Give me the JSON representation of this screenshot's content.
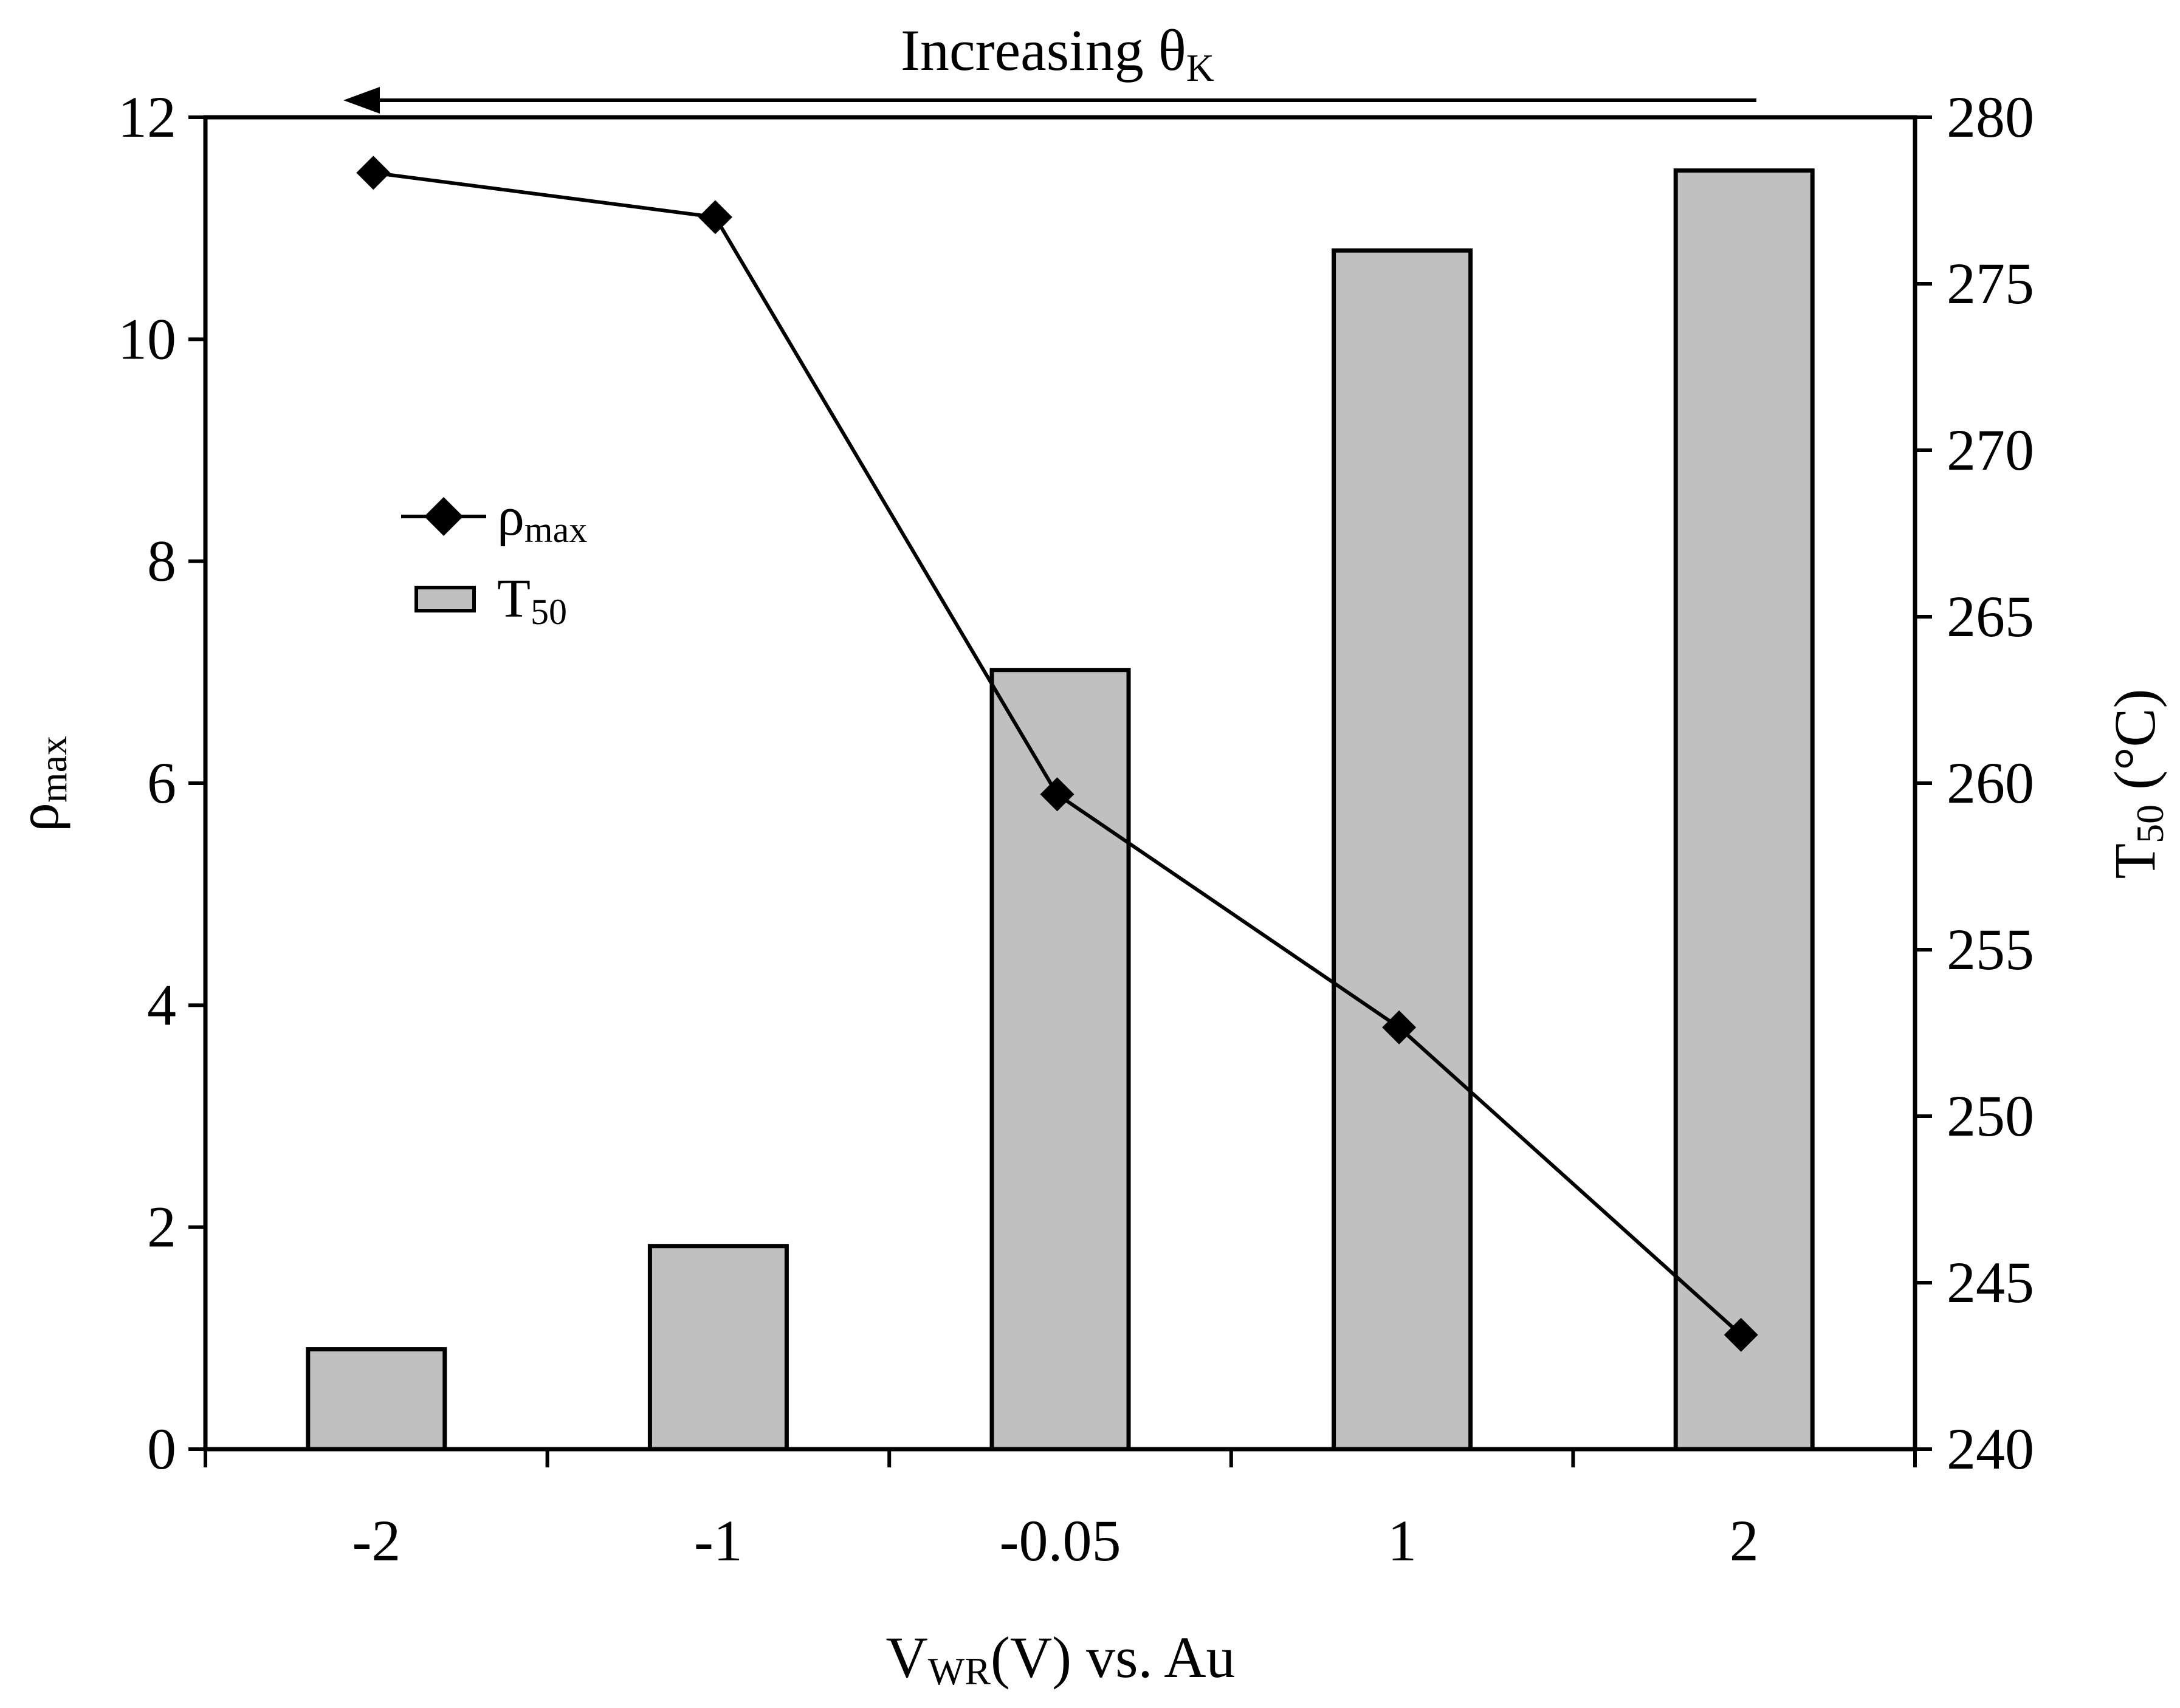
{
  "chart_data": {
    "type": "bar+line",
    "annotation": {
      "text": "Increasing θ",
      "subscript": "K",
      "direction": "right-to-left arrow"
    },
    "categories": [
      "-2",
      "-1",
      "-0.05",
      "1",
      "2"
    ],
    "xlabel": {
      "main": "V",
      "subscript": "WR",
      "rest": "(V) vs. Au"
    },
    "ylabel_left": {
      "main": "ρ",
      "subscript": "max"
    },
    "ylabel_right": {
      "main": "T",
      "subscript": "50",
      "rest": " (°C)"
    },
    "ylim_left": [
      0,
      12
    ],
    "ylim_right": [
      240,
      280
    ],
    "yticks_left": [
      0,
      2,
      4,
      6,
      8,
      10,
      12
    ],
    "yticks_right": [
      240,
      245,
      250,
      255,
      260,
      265,
      270,
      275,
      280
    ],
    "series": [
      {
        "name": "T50",
        "legend_main": "T",
        "legend_sub": "50",
        "kind": "bar",
        "axis": "right",
        "color": "#c0c0c0",
        "values": [
          243.0,
          246.1,
          263.4,
          276.0,
          278.4
        ]
      },
      {
        "name": "ρmax",
        "legend_main": "ρ",
        "legend_sub": "max",
        "kind": "line",
        "axis": "left",
        "marker": "diamond",
        "color": "#000000",
        "values": [
          11.5,
          11.1,
          5.9,
          3.8,
          1.03
        ]
      }
    ],
    "legend_placement": "upper-left inside plot",
    "grid": false
  }
}
